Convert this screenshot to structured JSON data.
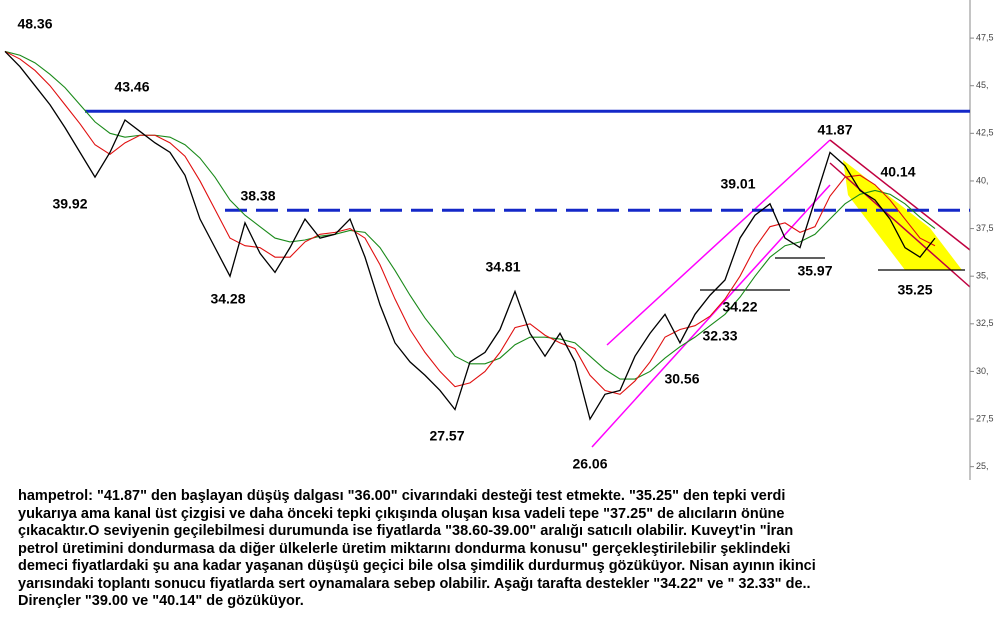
{
  "chart_data": {
    "type": "line",
    "ylim": [
      24.3,
      49.5
    ],
    "yticks": [
      {
        "value": 47.5,
        "label": "47,5"
      },
      {
        "value": 45,
        "label": "45,"
      },
      {
        "value": 42.5,
        "label": "42,5"
      },
      {
        "value": 40,
        "label": "40,"
      },
      {
        "value": 37.5,
        "label": "37,5"
      },
      {
        "value": 35,
        "label": "35,"
      },
      {
        "value": 32.5,
        "label": "32,5"
      },
      {
        "value": 30,
        "label": "30,"
      },
      {
        "value": 27.5,
        "label": "27,5"
      },
      {
        "value": 25,
        "label": "25,"
      }
    ],
    "series": [
      {
        "color": "#000000",
        "values": [
          46.8,
          46.0,
          45.0,
          44.0,
          42.8,
          41.5,
          40.2,
          41.5,
          43.2,
          42.6,
          42.0,
          41.5,
          40.3,
          38.0,
          36.5,
          35.0,
          37.8,
          36.2,
          35.2,
          36.5,
          38.0,
          37.0,
          37.2,
          38.0,
          36.0,
          33.5,
          31.5,
          30.5,
          29.8,
          29.0,
          28.0,
          30.5,
          31.0,
          32.2,
          34.2,
          32.0,
          30.8,
          32.0,
          30.5,
          27.5,
          28.8,
          29.0,
          30.8,
          32.0,
          33.0,
          31.5,
          33.0,
          34.0,
          34.8,
          37.0,
          38.2,
          38.8,
          37.0,
          36.5,
          39.0,
          41.5,
          40.8,
          39.5,
          39.0,
          38.0,
          36.5,
          36.0,
          37.0
        ]
      },
      {
        "color": "#e01010",
        "values": [
          46.8,
          46.4,
          45.8,
          45.0,
          44.0,
          43.0,
          41.9,
          41.4,
          42.0,
          42.4,
          42.4,
          42.0,
          41.3,
          40.0,
          38.5,
          37.0,
          36.6,
          36.5,
          36.0,
          36.0,
          36.8,
          37.2,
          37.3,
          37.5,
          37.0,
          35.6,
          33.8,
          32.2,
          31.0,
          30.0,
          29.2,
          29.4,
          30.0,
          31.0,
          32.3,
          32.5,
          31.9,
          31.5,
          31.2,
          29.8,
          29.0,
          28.8,
          29.5,
          30.5,
          31.8,
          32.2,
          32.4,
          32.9,
          33.8,
          35.0,
          36.5,
          37.6,
          37.8,
          37.3,
          37.6,
          39.2,
          40.2,
          40.3,
          39.8,
          39.0,
          38.0,
          37.0,
          36.6
        ]
      },
      {
        "color": "#1a8a1a",
        "values": [
          46.8,
          46.6,
          46.2,
          45.6,
          44.9,
          44.0,
          43.1,
          42.5,
          42.3,
          42.4,
          42.4,
          42.3,
          41.9,
          41.2,
          40.2,
          39.0,
          38.2,
          37.6,
          37.0,
          36.8,
          36.9,
          37.1,
          37.2,
          37.4,
          37.3,
          36.5,
          35.3,
          34.0,
          32.8,
          31.8,
          30.8,
          30.4,
          30.4,
          30.7,
          31.4,
          31.8,
          31.8,
          31.7,
          31.5,
          30.8,
          30.1,
          29.6,
          29.6,
          30.0,
          30.7,
          31.3,
          31.8,
          32.4,
          33.0,
          33.9,
          35.0,
          36.0,
          36.6,
          36.8,
          37.2,
          38.0,
          38.8,
          39.3,
          39.5,
          39.3,
          38.8,
          38.1,
          37.5
        ]
      }
    ],
    "reference_lines": [
      {
        "value": 43.66,
        "style": "solid",
        "color": "#1428c8"
      },
      {
        "value": 38.46,
        "style": "dashed",
        "color": "#1428c8"
      }
    ],
    "annotations": [
      "48.36",
      "43.46",
      "39.92",
      "38.38",
      "34.28",
      "34.81",
      "27.57",
      "26.06",
      "30.56",
      "32.33",
      "34.22",
      "39.01",
      "35.97",
      "41.87",
      "40.14",
      "35.25"
    ]
  },
  "caption_lines": [
    "hampetrol: \"41.87\" den başlayan düşüş dalgası \"36.00\" civarındaki desteği test etmekte. \"35.25\" den tepki verdi",
    "yukarıya ama kanal üst çizgisi ve daha önceki tepki çıkışında oluşan kısa vadeli tepe \"37.25\" de alıcıların önüne",
    "çıkacaktır.O seviyenin geçilebilmesi durumunda ise fiyatlarda \"38.60-39.00\" aralığı satıcılı olabilir. Kuveyt'in \"İran",
    "petrol üretimini dondurmasa da diğer ülkelerle üretim miktarını dondurma konusu\" gerçekleştirilebilir şeklindeki",
    "demeci fiyatlardaki şu ana kadar yaşanan düşüşü geçici bile olsa şimdilik durdurmuş gözüküyor. Nisan ayının ikinci",
    "yarısındaki toplantı sonucu fiyatlarda sert oynamalara sebep olabilir. Aşağı tarafta destekler \"34.22\" ve \" 32.33\" de..",
    "Dirençler \"39.00 ve \"40.14\" de gözüküyor."
  ]
}
